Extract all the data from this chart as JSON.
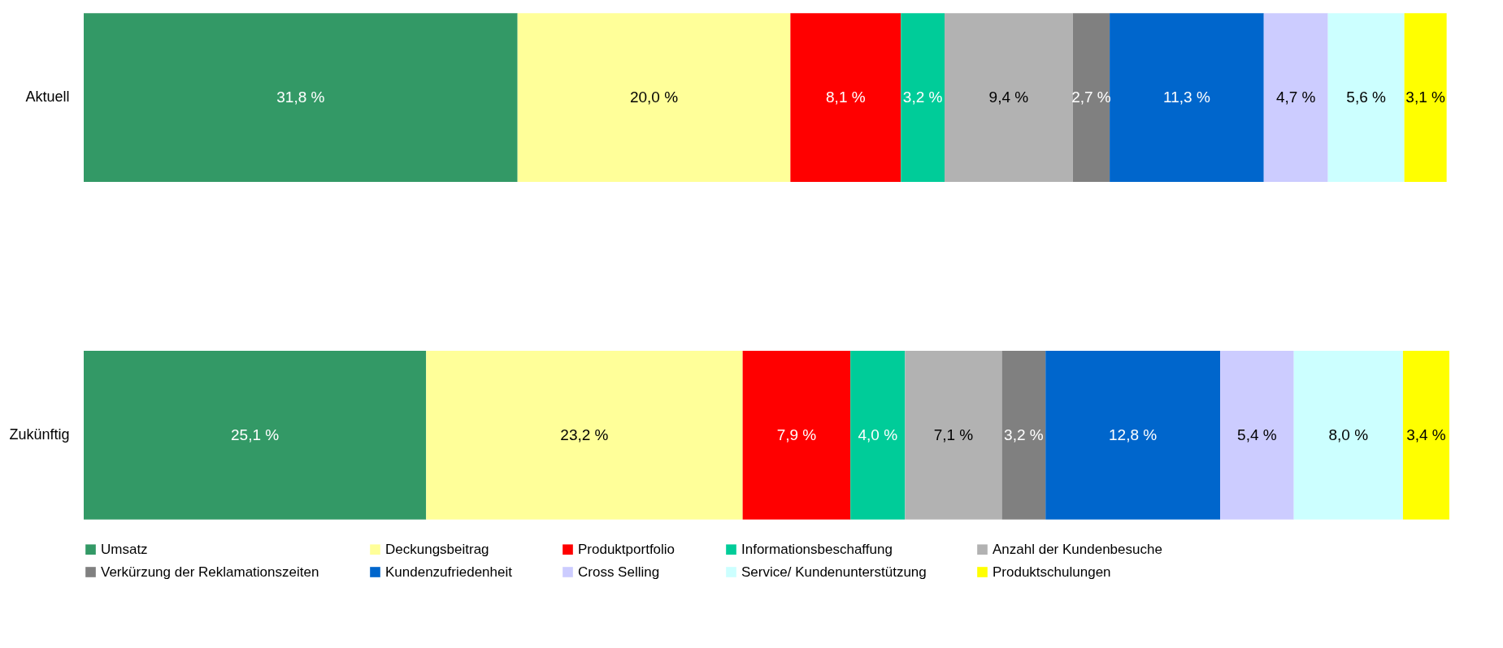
{
  "chart_data": {
    "type": "bar",
    "orientation": "horizontal",
    "stacked": true,
    "legend": "bottom",
    "xlim": [
      0,
      100.1
    ],
    "categories": [
      "Aktuell",
      "Zukünftig"
    ],
    "series": [
      {
        "name": "Umsatz",
        "color": "#339966",
        "values": [
          31.8,
          25.1
        ],
        "value_labels": [
          "31,8 %",
          "25,1 %"
        ]
      },
      {
        "name": "Deckungsbeitrag",
        "color": "#ffff99",
        "values": [
          20.0,
          23.2
        ],
        "value_labels": [
          "20,0 %",
          "23,2 %"
        ]
      },
      {
        "name": "Produktportfolio",
        "color": "#ff0000",
        "values": [
          8.1,
          7.9
        ],
        "value_labels": [
          "8,1 %",
          "7,9 %"
        ]
      },
      {
        "name": "Informationsbeschaffung",
        "color": "#00cc99",
        "values": [
          3.2,
          4.0
        ],
        "value_labels": [
          "3,2 %",
          "4,0 %"
        ]
      },
      {
        "name": "Anzahl der Kundenbesuche",
        "color": "#b2b2b2",
        "values": [
          9.4,
          7.1
        ],
        "value_labels": [
          "9,4 %",
          "7,1 %"
        ]
      },
      {
        "name": "Verkürzung der Reklamationszeiten",
        "color": "#808080",
        "values": [
          2.7,
          3.2
        ],
        "value_labels": [
          "2,7 %",
          "3,2 %"
        ]
      },
      {
        "name": "Kundenzufriedenheit",
        "color": "#0066cc",
        "values": [
          11.3,
          12.8
        ],
        "value_labels": [
          "11,3 %",
          "12,8 %"
        ]
      },
      {
        "name": "Cross Selling",
        "color": "#ccccff",
        "values": [
          4.7,
          5.4
        ],
        "value_labels": [
          "4,7 %",
          "5,4 %"
        ]
      },
      {
        "name": "Service/ Kundenunterstützung",
        "color": "#ccffff",
        "values": [
          5.6,
          8.0
        ],
        "value_labels": [
          "5,6 %",
          "8,0 %"
        ]
      },
      {
        "name": "Produktschulungen",
        "color": "#ffff00",
        "values": [
          3.1,
          3.4
        ],
        "value_labels": [
          "3,1 %",
          "3,4 %"
        ]
      }
    ]
  }
}
